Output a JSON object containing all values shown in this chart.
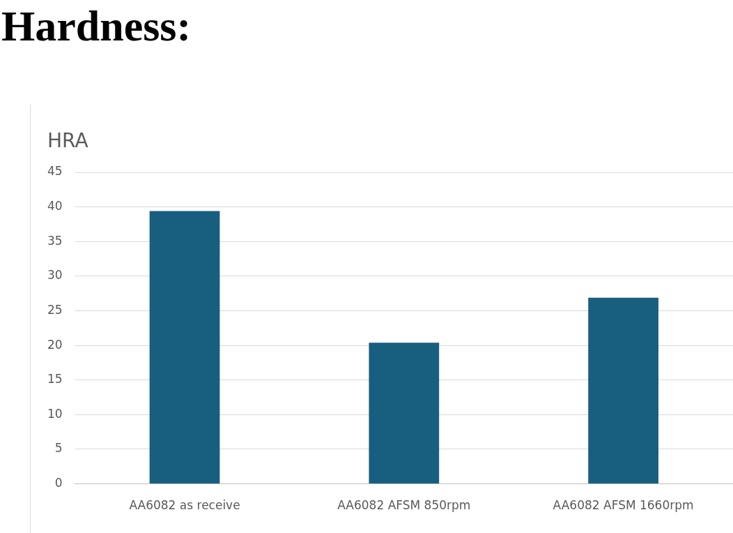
{
  "chart_data": {
    "type": "bar",
    "title": "Hardness:",
    "ylabel": "HRA",
    "categories": [
      "AA6082 as receive",
      "AA6082 AFSM 850rpm",
      "AA6082 AFSM 1660rpm"
    ],
    "values": [
      39.4,
      20.4,
      26.9
    ],
    "color": "#185e7f",
    "ylim": [
      0,
      45
    ],
    "yticks": [
      0,
      5,
      10,
      15,
      20,
      25,
      30,
      35,
      40,
      45
    ],
    "grid": "y"
  }
}
